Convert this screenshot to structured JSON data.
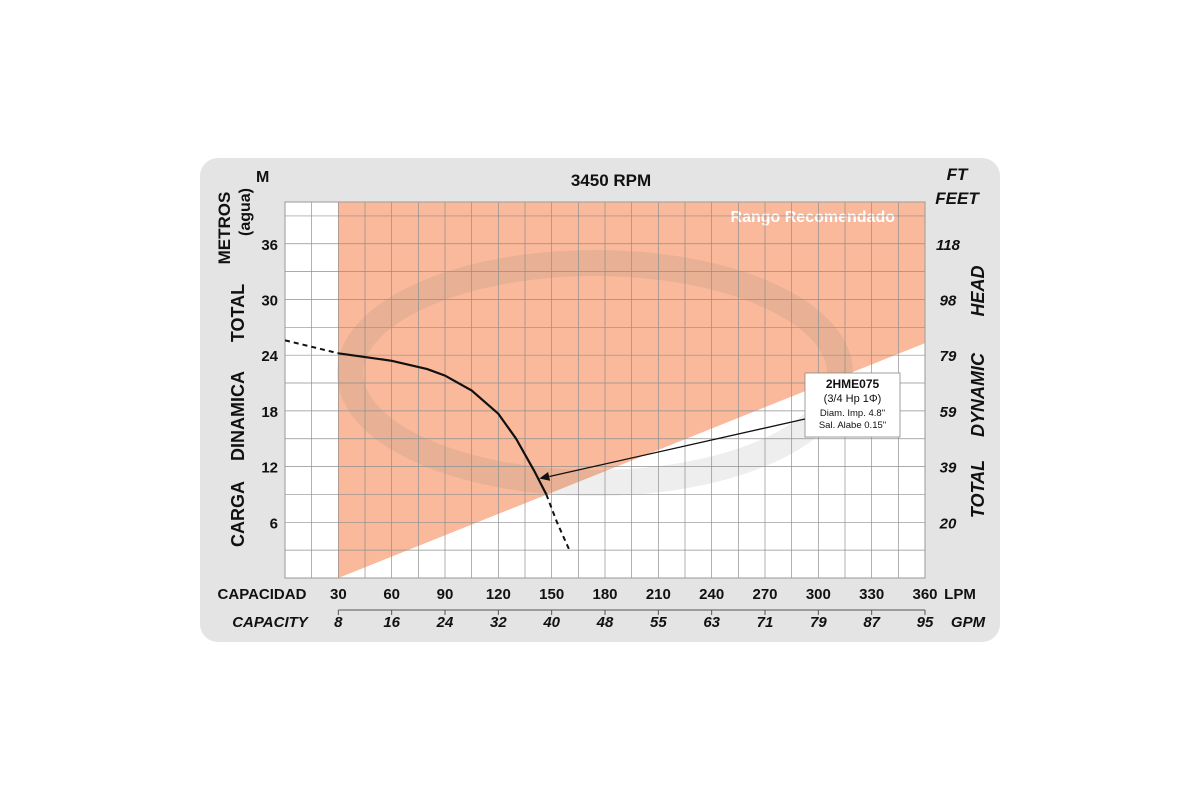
{
  "chart_data": {
    "type": "line",
    "title": "3450 RPM",
    "left_unit": "M",
    "right_unit_top": "FT",
    "right_unit_bottom": "FEET",
    "left_axis_label": {
      "metros": "METROS",
      "agua": "(agua)",
      "words": [
        "CARGA",
        "DINAMICA",
        "TOTAL"
      ]
    },
    "right_axis_label": {
      "words": [
        "TOTAL",
        "DYNAMIC",
        "HEAD"
      ]
    },
    "x_label_es": "CAPACIDAD",
    "x_label_en": "CAPACITY",
    "x_unit_primary": "LPM",
    "x_unit_secondary": "GPM",
    "x_primary_ticks": [
      "30",
      "60",
      "90",
      "120",
      "150",
      "180",
      "210",
      "240",
      "270",
      "300",
      "330",
      "360"
    ],
    "x_secondary_ticks": [
      "8",
      "16",
      "24",
      "32",
      "40",
      "48",
      "55",
      "63",
      "71",
      "79",
      "87",
      "95"
    ],
    "y_ticks_m": [
      "6",
      "12",
      "18",
      "24",
      "30",
      "36"
    ],
    "y_ticks_ft": [
      "20",
      "39",
      "59",
      "79",
      "98",
      "118"
    ],
    "xlim": [
      0,
      360
    ],
    "ylim": [
      0,
      40.5
    ],
    "recommended_range": {
      "label": "Rango Recomendado",
      "x_start": 30,
      "lower_boundary": [
        [
          30,
          0
        ],
        [
          360,
          25.3
        ]
      ],
      "color": "#f9b99a"
    },
    "series": [
      {
        "name": "2HME075",
        "solid": [
          [
            30,
            24.2
          ],
          [
            60,
            23.4
          ],
          [
            80,
            22.5
          ],
          [
            90,
            21.8
          ],
          [
            105,
            20.2
          ],
          [
            120,
            17.7
          ],
          [
            130,
            15.0
          ],
          [
            140,
            11.6
          ],
          [
            147,
            9.0
          ]
        ],
        "dashed_start": [
          [
            0,
            25.6
          ],
          [
            30,
            24.2
          ]
        ],
        "dashed_end": [
          [
            147,
            9.0
          ],
          [
            153,
            6.0
          ],
          [
            160,
            3.0
          ]
        ],
        "color": "#111111"
      }
    ],
    "annotation": {
      "lines": [
        "2HME075",
        "(3/4 Hp 1Φ)",
        "Diam. Imp. 4.8\"",
        "Sal. Alabe 0.15\""
      ],
      "arrow_target": [
        147,
        10.5
      ]
    },
    "grid": true
  }
}
